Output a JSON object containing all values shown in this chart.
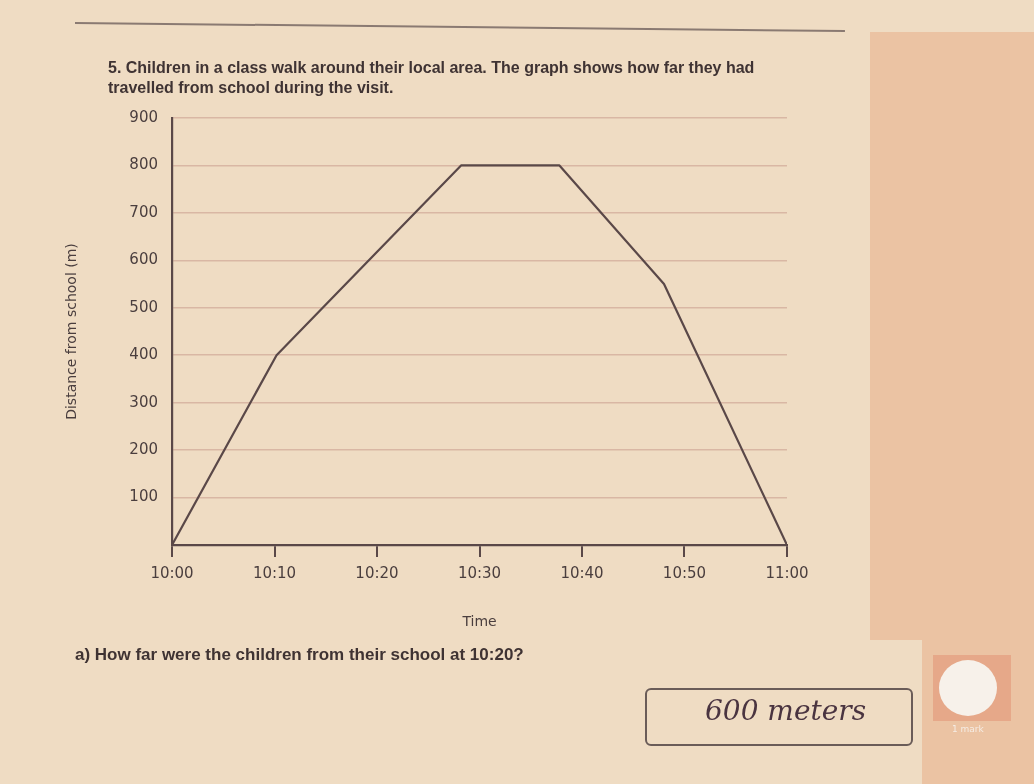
{
  "chart_data": {
    "type": "line",
    "title": "5. Children in a class walk around their local area. The graph shows how far they had travelled from school during the visit.",
    "xlabel": "Time",
    "ylabel": "Distance from school (m)",
    "x": [
      10,
      10.17,
      10.47,
      10.63,
      10.8,
      11
    ],
    "values": [
      0,
      400,
      800,
      800,
      550,
      0
    ],
    "color": "#5a4848",
    "xlim": [
      10,
      11
    ],
    "xticks": [
      {
        "value": 10,
        "label": "10:00"
      },
      {
        "value": 10.1667,
        "label": "10:10"
      },
      {
        "value": 10.3333,
        "label": "10:20"
      },
      {
        "value": 10.5,
        "label": "10:30"
      },
      {
        "value": 10.6667,
        "label": "10:40"
      },
      {
        "value": 10.8333,
        "label": "10:50"
      },
      {
        "value": 11,
        "label": "11:00"
      }
    ],
    "ylim": [
      0,
      900
    ],
    "yticks": [
      100,
      200,
      300,
      400,
      500,
      600,
      700,
      800,
      900
    ],
    "grid": "y",
    "marker": "none",
    "annotations": [
      "a) How far were the children from their school at 10:20?",
      "600 meters",
      "1 mark"
    ]
  }
}
